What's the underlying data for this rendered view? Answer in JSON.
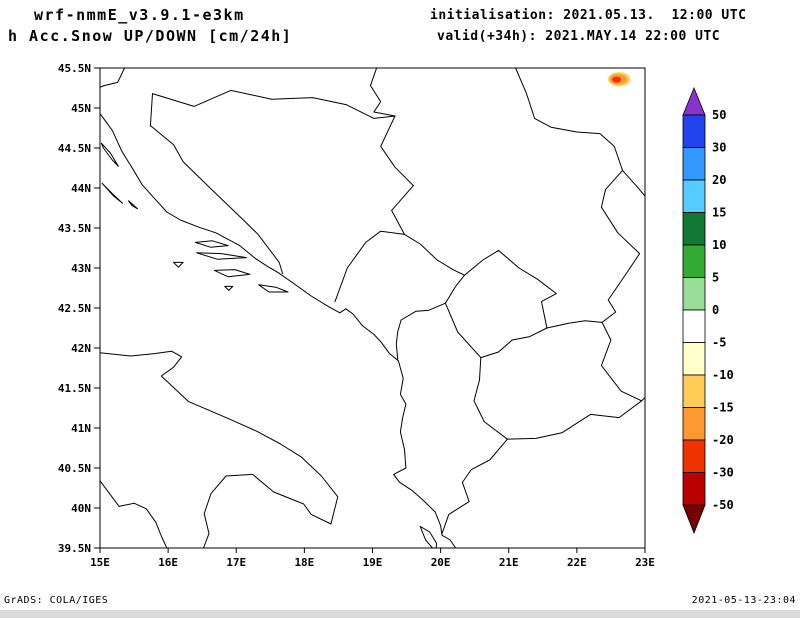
{
  "header": {
    "model_line1": "wrf-nmmE_v3.9.1-e3km",
    "model_line2": "h Acc.Snow UP/DOWN [cm/24h]",
    "init_line": "initialisation: 2021.05.13.  12:00 UTC",
    "valid_line": "valid(+34h): 2021.MAY.14 22:00 UTC"
  },
  "footer": {
    "left": "GrADS: COLA/IGES",
    "right": "2021-05-13-23:04"
  },
  "chart_data": {
    "type": "filled-contour-map",
    "title": "24h accumulated snow up/down [cm/24h]",
    "extent": {
      "lon_min": 15,
      "lon_max": 23,
      "lat_min": 39.5,
      "lat_max": 45.5
    },
    "x_axis": {
      "labels": [
        "15E",
        "16E",
        "17E",
        "18E",
        "19E",
        "20E",
        "21E",
        "22E",
        "23E"
      ],
      "values": [
        15,
        16,
        17,
        18,
        19,
        20,
        21,
        22,
        23
      ]
    },
    "y_axis": {
      "labels": [
        "45.5N",
        "45N",
        "44.5N",
        "44N",
        "43.5N",
        "43N",
        "42.5N",
        "42N",
        "41.5N",
        "41N",
        "40.5N",
        "40N",
        "39.5N"
      ],
      "values": [
        45.5,
        45,
        44.5,
        44,
        43.5,
        43,
        42.5,
        42,
        41.5,
        41,
        40.5,
        40,
        39.5
      ]
    },
    "colorbar": {
      "units": "cm/24h",
      "levels": [
        50,
        30,
        20,
        15,
        10,
        5,
        0,
        -5,
        -10,
        -15,
        -20,
        -30,
        -50
      ],
      "labels": [
        "50",
        "30",
        "20",
        "15",
        "10",
        "5",
        "0",
        "-5",
        "-10",
        "-15",
        "-20",
        "-30",
        "-50"
      ],
      "colors_top_to_bottom": [
        "#8833cc",
        "#2244ee",
        "#3399ff",
        "#55ccff",
        "#117733",
        "#33aa33",
        "#99dd99",
        "#ffffff",
        "#ffffcc",
        "#ffcc55",
        "#ff9933",
        "#ee3300",
        "#bb0000",
        "#770000"
      ]
    },
    "field_features": [
      {
        "name": "snow-change-spot",
        "lon": 22.62,
        "lat": 45.36,
        "value_range_cm_24h": "-15 to -30",
        "colors": [
          "#ffcc55",
          "#ff9933",
          "#ee3300"
        ]
      }
    ],
    "map_outlines": [
      {
        "name": "adriatic-balkan-coast",
        "closed": false,
        "points": [
          [
            15.0,
            44.93
          ],
          [
            15.18,
            44.72
          ],
          [
            15.32,
            44.46
          ],
          [
            15.48,
            44.24
          ],
          [
            15.62,
            44.04
          ],
          [
            15.8,
            43.87
          ],
          [
            15.98,
            43.7
          ],
          [
            16.18,
            43.6
          ],
          [
            16.45,
            43.51
          ],
          [
            16.7,
            43.44
          ],
          [
            17.05,
            43.28
          ],
          [
            17.28,
            43.12
          ],
          [
            17.46,
            43.02
          ],
          [
            17.62,
            42.94
          ],
          [
            17.82,
            42.82
          ],
          [
            18.1,
            42.65
          ],
          [
            18.35,
            42.52
          ],
          [
            18.52,
            42.44
          ],
          [
            18.61,
            42.49
          ],
          [
            18.72,
            42.42
          ],
          [
            18.85,
            42.28
          ],
          [
            19.02,
            42.17
          ],
          [
            19.12,
            42.08
          ],
          [
            19.25,
            41.93
          ],
          [
            19.38,
            41.84
          ],
          [
            19.45,
            41.62
          ],
          [
            19.41,
            41.42
          ],
          [
            19.49,
            41.3
          ],
          [
            19.44,
            41.12
          ],
          [
            19.41,
            40.95
          ],
          [
            19.47,
            40.73
          ],
          [
            19.49,
            40.5
          ],
          [
            19.31,
            40.42
          ],
          [
            19.4,
            40.32
          ],
          [
            19.58,
            40.22
          ],
          [
            19.74,
            40.1
          ],
          [
            19.92,
            39.95
          ],
          [
            20.0,
            39.78
          ],
          [
            20.02,
            39.66
          ],
          [
            20.14,
            39.6
          ],
          [
            20.22,
            39.5
          ]
        ]
      },
      {
        "name": "italy-adriatic-coast",
        "closed": false,
        "points": [
          [
            15.0,
            41.94
          ],
          [
            15.45,
            41.9
          ],
          [
            15.8,
            41.93
          ],
          [
            16.05,
            41.96
          ],
          [
            16.2,
            41.89
          ],
          [
            16.08,
            41.76
          ],
          [
            15.9,
            41.65
          ],
          [
            16.3,
            41.33
          ],
          [
            16.85,
            41.13
          ],
          [
            17.3,
            40.96
          ],
          [
            17.65,
            40.8
          ],
          [
            17.95,
            40.64
          ],
          [
            18.25,
            40.4
          ],
          [
            18.49,
            40.14
          ],
          [
            18.39,
            39.8
          ],
          [
            18.1,
            39.92
          ],
          [
            17.99,
            40.05
          ],
          [
            17.55,
            40.2
          ],
          [
            17.24,
            40.42
          ],
          [
            16.85,
            40.4
          ],
          [
            16.63,
            40.18
          ],
          [
            16.53,
            39.93
          ],
          [
            16.6,
            39.68
          ],
          [
            16.52,
            39.5
          ]
        ]
      },
      {
        "name": "italy-tyrrhenian-coast",
        "closed": false,
        "points": [
          [
            15.0,
            40.34
          ],
          [
            15.28,
            40.02
          ],
          [
            15.5,
            40.06
          ],
          [
            15.68,
            39.99
          ],
          [
            15.82,
            39.82
          ],
          [
            15.9,
            39.65
          ],
          [
            15.98,
            39.5
          ]
        ]
      },
      {
        "name": "island-pag",
        "closed": true,
        "points": [
          [
            15.02,
            44.56
          ],
          [
            15.15,
            44.44
          ],
          [
            15.27,
            44.27
          ],
          [
            15.18,
            44.35
          ],
          [
            15.05,
            44.5
          ]
        ]
      },
      {
        "name": "island-dugi-otok",
        "closed": true,
        "points": [
          [
            15.03,
            44.06
          ],
          [
            15.18,
            43.93
          ],
          [
            15.33,
            43.81
          ],
          [
            15.2,
            43.9
          ]
        ]
      },
      {
        "name": "island-kornati",
        "closed": true,
        "points": [
          [
            15.42,
            43.84
          ],
          [
            15.55,
            43.74
          ],
          [
            15.47,
            43.78
          ]
        ]
      },
      {
        "name": "island-brac",
        "closed": true,
        "points": [
          [
            16.4,
            43.32
          ],
          [
            16.65,
            43.34
          ],
          [
            16.88,
            43.28
          ],
          [
            16.62,
            43.26
          ]
        ]
      },
      {
        "name": "island-hvar",
        "closed": true,
        "points": [
          [
            16.42,
            43.19
          ],
          [
            16.78,
            43.18
          ],
          [
            17.15,
            43.13
          ],
          [
            16.72,
            43.11
          ]
        ]
      },
      {
        "name": "island-korcula",
        "closed": true,
        "points": [
          [
            16.68,
            42.97
          ],
          [
            16.98,
            42.98
          ],
          [
            17.2,
            42.92
          ],
          [
            16.88,
            42.89
          ]
        ]
      },
      {
        "name": "island-vis",
        "closed": true,
        "points": [
          [
            16.08,
            43.07
          ],
          [
            16.22,
            43.07
          ],
          [
            16.15,
            43.01
          ]
        ]
      },
      {
        "name": "island-mljet",
        "closed": true,
        "points": [
          [
            17.33,
            42.79
          ],
          [
            17.58,
            42.76
          ],
          [
            17.76,
            42.7
          ],
          [
            17.48,
            42.7
          ]
        ]
      },
      {
        "name": "island-lastovo",
        "closed": true,
        "points": [
          [
            16.83,
            42.77
          ],
          [
            16.95,
            42.77
          ],
          [
            16.89,
            42.72
          ]
        ]
      },
      {
        "name": "island-corfu",
        "closed": true,
        "points": [
          [
            19.7,
            39.77
          ],
          [
            19.84,
            39.7
          ],
          [
            19.94,
            39.56
          ],
          [
            19.93,
            39.45
          ],
          [
            19.78,
            39.6
          ]
        ]
      },
      {
        "name": "border-slo-cro",
        "closed": false,
        "points": [
          [
            15.36,
            45.5
          ],
          [
            15.26,
            45.32
          ],
          [
            15.06,
            45.28
          ],
          [
            15.0,
            45.26
          ]
        ]
      },
      {
        "name": "border-cro-bih-west",
        "closed": false,
        "points": [
          [
            15.77,
            45.18
          ],
          [
            15.74,
            44.78
          ],
          [
            16.08,
            44.54
          ],
          [
            16.22,
            44.33
          ],
          [
            16.58,
            44.03
          ],
          [
            17.08,
            43.62
          ],
          [
            17.32,
            43.42
          ],
          [
            17.63,
            43.07
          ],
          [
            17.68,
            42.93
          ]
        ]
      },
      {
        "name": "border-bih-sava",
        "closed": false,
        "points": [
          [
            15.77,
            45.18
          ],
          [
            16.38,
            45.02
          ],
          [
            16.92,
            45.22
          ],
          [
            17.52,
            45.11
          ],
          [
            18.12,
            45.13
          ],
          [
            18.62,
            45.04
          ],
          [
            19.02,
            44.87
          ],
          [
            19.33,
            44.9
          ]
        ]
      },
      {
        "name": "border-cro-srb",
        "closed": false,
        "points": [
          [
            19.06,
            45.5
          ],
          [
            18.97,
            45.28
          ],
          [
            19.12,
            45.08
          ],
          [
            19.02,
            44.95
          ],
          [
            19.33,
            44.9
          ]
        ]
      },
      {
        "name": "border-bih-srb-mne",
        "closed": false,
        "points": [
          [
            19.33,
            44.9
          ],
          [
            19.12,
            44.52
          ],
          [
            19.33,
            44.26
          ],
          [
            19.6,
            44.03
          ],
          [
            19.28,
            43.72
          ],
          [
            19.47,
            43.42
          ],
          [
            19.12,
            43.46
          ],
          [
            18.9,
            43.32
          ],
          [
            18.63,
            43.0
          ],
          [
            18.45,
            42.58
          ]
        ]
      },
      {
        "name": "border-mne-srb",
        "closed": false,
        "points": [
          [
            19.47,
            43.42
          ],
          [
            19.7,
            43.3
          ],
          [
            19.95,
            43.1
          ],
          [
            20.18,
            42.98
          ],
          [
            20.35,
            42.91
          ]
        ]
      },
      {
        "name": "border-mne-alb",
        "closed": false,
        "points": [
          [
            20.07,
            42.56
          ],
          [
            19.82,
            42.47
          ],
          [
            19.64,
            42.46
          ],
          [
            19.42,
            42.35
          ],
          [
            19.37,
            42.2
          ],
          [
            19.35,
            42.05
          ],
          [
            19.37,
            41.86
          ]
        ]
      },
      {
        "name": "border-kosovo",
        "closed": true,
        "points": [
          [
            20.07,
            42.56
          ],
          [
            20.25,
            42.2
          ],
          [
            20.59,
            41.88
          ],
          [
            20.85,
            41.95
          ],
          [
            21.05,
            42.1
          ],
          [
            21.3,
            42.14
          ],
          [
            21.56,
            42.25
          ],
          [
            21.48,
            42.58
          ],
          [
            21.7,
            42.68
          ],
          [
            21.42,
            42.86
          ],
          [
            21.15,
            43.0
          ],
          [
            20.85,
            43.22
          ],
          [
            20.62,
            43.1
          ],
          [
            20.35,
            42.91
          ],
          [
            20.22,
            42.77
          ]
        ]
      },
      {
        "name": "border-srb-mk",
        "closed": false,
        "points": [
          [
            21.56,
            42.25
          ],
          [
            21.88,
            42.31
          ],
          [
            22.12,
            42.34
          ],
          [
            22.37,
            42.32
          ]
        ]
      },
      {
        "name": "border-srb-bg",
        "closed": false,
        "points": [
          [
            22.67,
            44.22
          ],
          [
            22.42,
            43.98
          ],
          [
            22.36,
            43.76
          ],
          [
            22.6,
            43.44
          ],
          [
            22.92,
            43.18
          ],
          [
            22.7,
            42.9
          ],
          [
            22.46,
            42.6
          ],
          [
            22.57,
            42.45
          ],
          [
            22.37,
            42.32
          ]
        ]
      },
      {
        "name": "border-srb-ro-danube",
        "closed": false,
        "points": [
          [
            21.1,
            45.5
          ],
          [
            21.26,
            45.18
          ],
          [
            21.38,
            44.87
          ],
          [
            21.62,
            44.76
          ],
          [
            22.0,
            44.7
          ],
          [
            22.34,
            44.68
          ],
          [
            22.55,
            44.52
          ],
          [
            22.67,
            44.22
          ],
          [
            22.87,
            44.03
          ],
          [
            23.0,
            43.9
          ]
        ]
      },
      {
        "name": "border-mk-bg",
        "closed": false,
        "points": [
          [
            22.37,
            42.32
          ],
          [
            22.5,
            42.1
          ],
          [
            22.36,
            41.78
          ],
          [
            22.65,
            41.46
          ],
          [
            22.95,
            41.34
          ]
        ]
      },
      {
        "name": "border-mk-gr",
        "closed": false,
        "points": [
          [
            22.95,
            41.34
          ],
          [
            22.62,
            41.13
          ],
          [
            22.2,
            41.17
          ],
          [
            21.78,
            40.94
          ],
          [
            21.4,
            40.87
          ],
          [
            20.98,
            40.86
          ]
        ]
      },
      {
        "name": "border-mk-alb",
        "closed": false,
        "points": [
          [
            20.98,
            40.86
          ],
          [
            20.64,
            41.08
          ],
          [
            20.49,
            41.34
          ],
          [
            20.57,
            41.6
          ],
          [
            20.59,
            41.88
          ]
        ]
      },
      {
        "name": "border-alb-gr",
        "closed": false,
        "points": [
          [
            20.98,
            40.86
          ],
          [
            20.72,
            40.6
          ],
          [
            20.45,
            40.48
          ],
          [
            20.32,
            40.32
          ],
          [
            20.42,
            40.08
          ],
          [
            20.12,
            39.92
          ],
          [
            20.02,
            39.68
          ]
        ]
      },
      {
        "name": "border-gr-bg-stub",
        "closed": false,
        "points": [
          [
            22.95,
            41.34
          ],
          [
            23.0,
            41.38
          ]
        ]
      }
    ]
  }
}
